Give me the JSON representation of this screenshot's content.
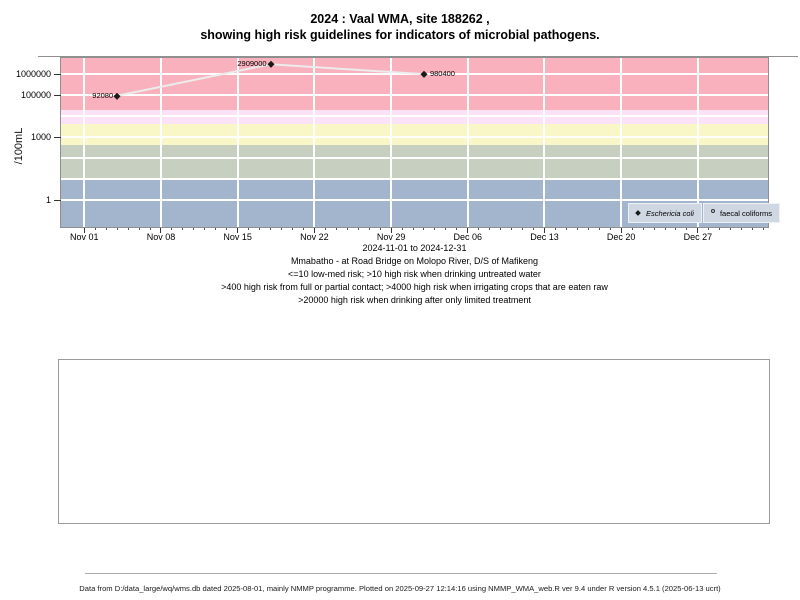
{
  "title": {
    "line1": "2024 : Vaal WMA, site 188262 ,",
    "line2": "showing high risk guidelines for indicators of microbial pathogens."
  },
  "chart_data": {
    "type": "line",
    "title": "2024 : Vaal WMA, site 188262 , showing high risk guidelines for indicators of microbial pathogens.",
    "ylabel": "/100mL",
    "y_scale": "log10",
    "ylim": [
      0.05,
      5800000
    ],
    "x_range": "2024-11-01 to 2024-12-31",
    "grid_color": "#ffffff",
    "y_ticks": [
      {
        "label": "1000000",
        "value": 1000000
      },
      {
        "label": "100000",
        "value": 100000
      },
      {
        "label": "1000",
        "value": 1000
      },
      {
        "label": "1",
        "value": 1
      }
    ],
    "x_ticks": [
      {
        "label": "Nov 01",
        "day": 0
      },
      {
        "label": "Nov 08",
        "day": 7
      },
      {
        "label": "Nov 15",
        "day": 14
      },
      {
        "label": "Nov 22",
        "day": 21
      },
      {
        "label": "Nov 29",
        "day": 28
      },
      {
        "label": "Dec 06",
        "day": 35
      },
      {
        "label": "Dec 13",
        "day": 42
      },
      {
        "label": "Dec 20",
        "day": 49
      },
      {
        "label": "Dec 27",
        "day": 56
      }
    ],
    "minor_tick_days": 62,
    "risk_bands": [
      {
        "name": "high risk when drinking after only limited treatment (>20000)",
        "min": 20000,
        "max": 100000000,
        "color": "#f8b1bd"
      },
      {
        "name": "high risk when irrigating crops that are eaten raw (>4000)",
        "min": 4000,
        "max": 20000,
        "color": "#fbe2f6"
      },
      {
        "name": "high risk from full or partial contact (>400)",
        "min": 400,
        "max": 4000,
        "color": "#f9f6c8"
      },
      {
        "name": "high risk when drinking untreated water (>10)",
        "min": 10,
        "max": 400,
        "color": "#c6cfc0"
      },
      {
        "name": "low-med risk (<=10)",
        "min": 0.01,
        "max": 10,
        "color": "#a3b4cd"
      }
    ],
    "series": [
      {
        "name": "Eschericia coli",
        "marker": "filled-diamond",
        "marker_color": "#1a1a1a",
        "line_color": "#ececec",
        "points": [
          {
            "date": "2024-11-04",
            "day": 3,
            "value": 92080,
            "label": "92080",
            "label_side": "left"
          },
          {
            "date": "2024-11-18",
            "day": 17,
            "value": 2909000,
            "label": "2909000",
            "label_side": "left"
          },
          {
            "date": "2024-12-02",
            "day": 31,
            "value": 980400,
            "label": "980400",
            "label_side": "right"
          }
        ]
      },
      {
        "name": "faecal coliforms",
        "marker": "open-circle",
        "marker_color": "#333333",
        "line_color": "#ececec",
        "points": []
      }
    ],
    "legend_position": "bottom-right"
  },
  "captions": [
    "2024-11-01 to 2024-12-31",
    "Mmabatho - at Road Bridge on Molopo River, D/S of Mafikeng",
    "<=10 low-med risk; >10 high risk when drinking untreated water",
    ">400 high risk from full or partial contact; >4000 high risk when irrigating crops that are eaten raw",
    ">20000 high risk when drinking after only limited treatment"
  ],
  "footer": {
    "text": "Data from D:/data_large/wq/wms.db dated 2025-08-01, mainly NMMP programme. Plotted on 2025-09-27 12:14:16 using NMMP_WMA_web.R ver 9.4 under R version 4.5.1 (2025-06-13 ucrt)"
  }
}
